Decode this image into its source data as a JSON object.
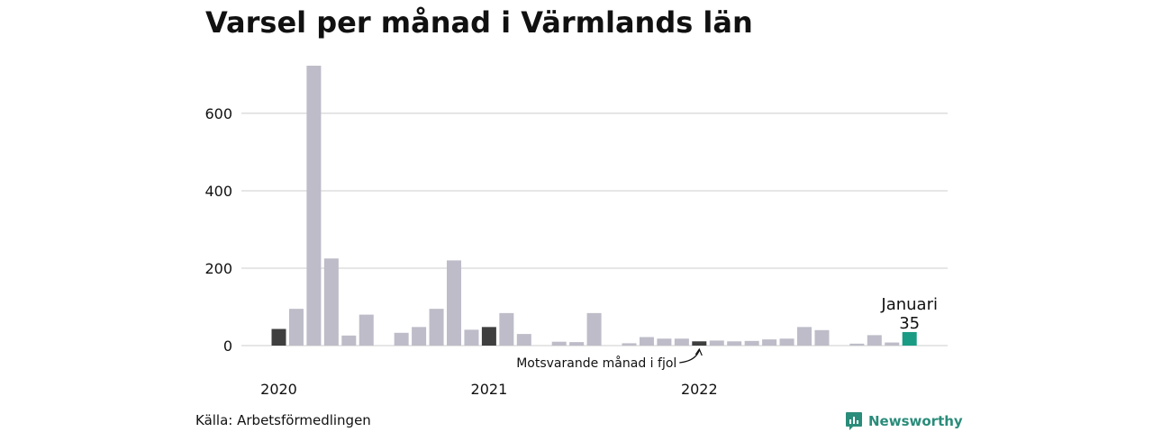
{
  "title": "Varsel per månad i Värmlands län",
  "source": "Källa: Arbetsförmedlingen",
  "brand": "Newsworthy",
  "colors": {
    "bar_default": "#bdbcc8",
    "bar_last_year": "#3f3f3f",
    "bar_current": "#1a9c84",
    "grid": "#dddddd",
    "brand": "#2a8c7a"
  },
  "chart_data": {
    "type": "bar",
    "ylim": [
      0,
      740
    ],
    "yticks": [
      0,
      200,
      400,
      600
    ],
    "grid": true,
    "year_labels": [
      {
        "label": "2020",
        "month_index": 0
      },
      {
        "label": "2021",
        "month_index": 12
      },
      {
        "label": "2022",
        "month_index": 24
      }
    ],
    "months": [
      "2020-01",
      "2020-02",
      "2020-03",
      "2020-04",
      "2020-05",
      "2020-06",
      "2020-07",
      "2020-08",
      "2020-09",
      "2020-10",
      "2020-11",
      "2020-12",
      "2021-01",
      "2021-02",
      "2021-03",
      "2021-04",
      "2021-05",
      "2021-06",
      "2021-07",
      "2021-08",
      "2021-09",
      "2021-10",
      "2021-11",
      "2021-12",
      "2022-01",
      "2022-02",
      "2022-03",
      "2022-04",
      "2022-05",
      "2022-06",
      "2022-07",
      "2022-08",
      "2022-09",
      "2022-10",
      "2022-11",
      "2022-12",
      "2023-01"
    ],
    "values": [
      43,
      95,
      723,
      225,
      26,
      80,
      0,
      33,
      48,
      95,
      220,
      41,
      48,
      84,
      30,
      0,
      10,
      9,
      84,
      0,
      6,
      22,
      18,
      18,
      11,
      13,
      11,
      12,
      16,
      18,
      48,
      40,
      0,
      5,
      27,
      8,
      35
    ],
    "highlight_last_year_index": 24,
    "highlight_current_index": 36,
    "callout": {
      "month_label": "Januari",
      "value_label": "35"
    },
    "annotation": "Motsvarande månad i fjol"
  }
}
